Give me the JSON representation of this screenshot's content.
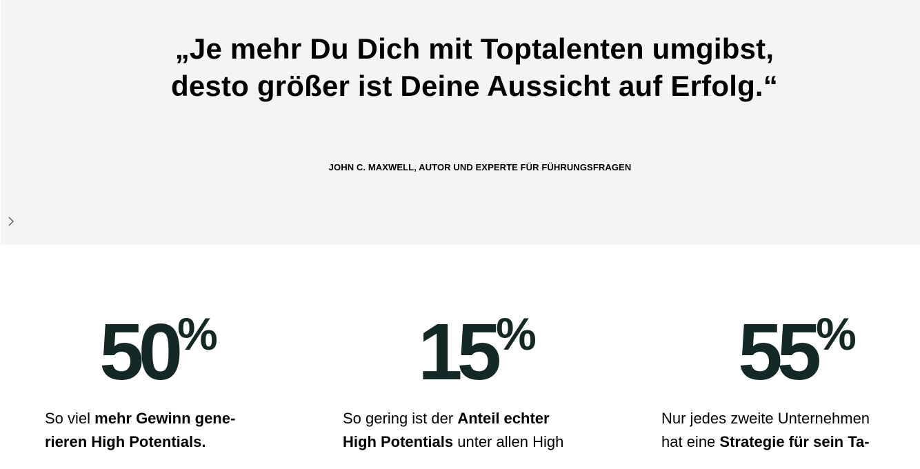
{
  "quote": {
    "lines": [
      "„Je mehr Du Dich mit Toptalenten umgibst,",
      "desto größer ist Deine Aussicht auf Erfolg.“"
    ],
    "author": "JOHN C. MAXWELL, AUTOR UND EXPERTE FÜR FÜHRUNGSFRAGEN"
  },
  "stats": [
    {
      "value": 50,
      "unit": "%",
      "lines": [
        [
          {
            "text": "So viel ",
            "bold": false
          },
          {
            "text": "mehr Gewinn gene-",
            "bold": true
          }
        ],
        [
          {
            "text": "rieren High Potentials.",
            "bold": true
          }
        ]
      ]
    },
    {
      "value": 15,
      "unit": "%",
      "lines": [
        [
          {
            "text": "So gering ist der ",
            "bold": false
          },
          {
            "text": "Anteil echter",
            "bold": true
          }
        ],
        [
          {
            "text": "High Potentials",
            "bold": true
          },
          {
            "text": " unter allen High",
            "bold": false
          }
        ]
      ]
    },
    {
      "value": 55,
      "unit": "%",
      "lines": [
        [
          {
            "text": "Nur jedes zweite Unternehmen",
            "bold": false
          }
        ],
        [
          {
            "text": "hat eine ",
            "bold": false
          },
          {
            "text": "Strategie für sein Ta-",
            "bold": true
          }
        ]
      ]
    }
  ]
}
